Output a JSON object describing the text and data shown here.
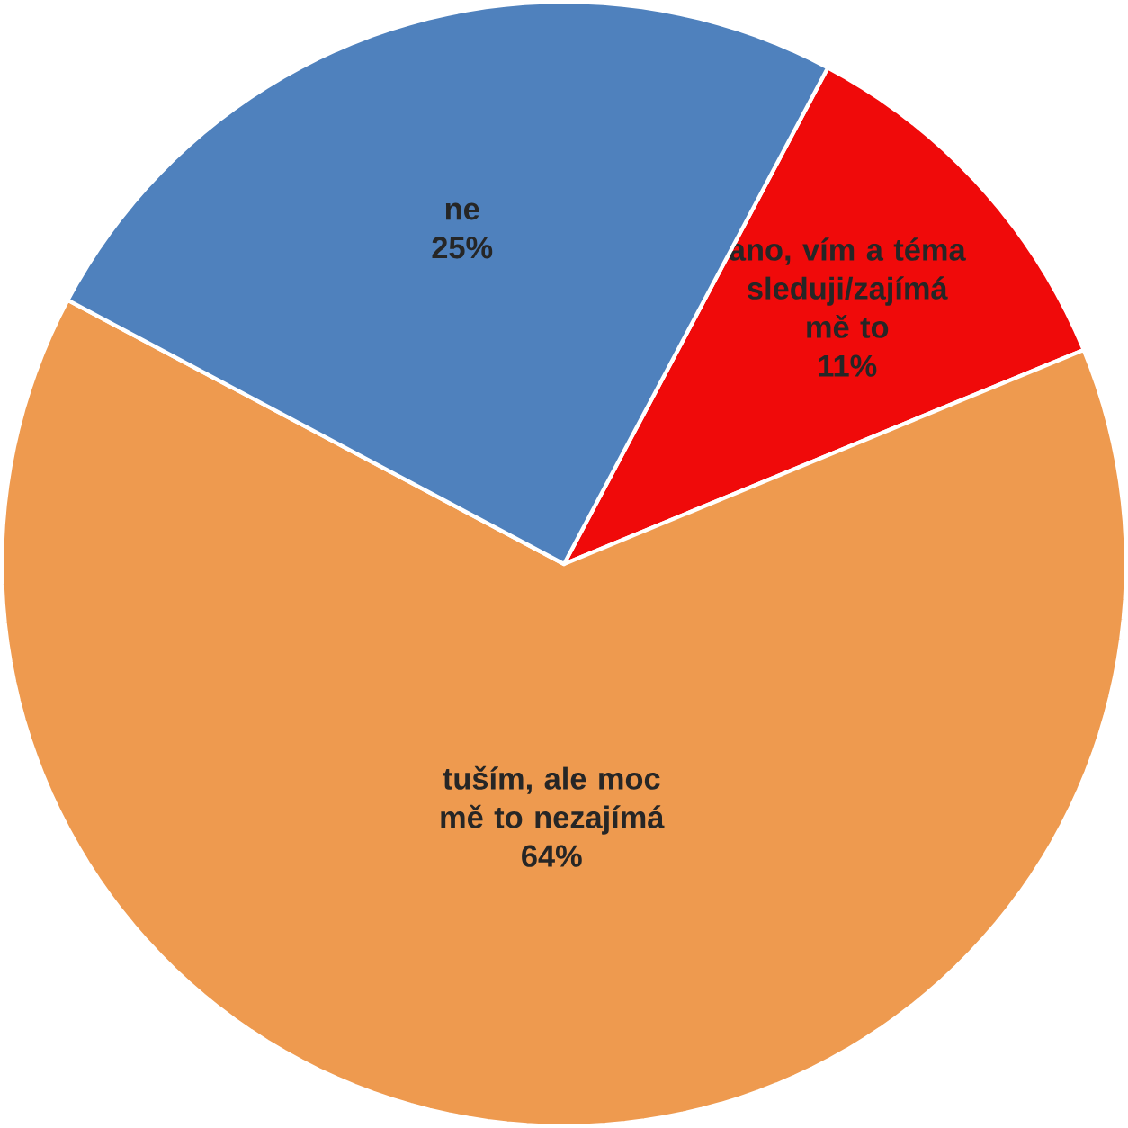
{
  "chart_data": {
    "type": "pie",
    "categories": [
      "ano, vím a téma sleduji/zajímá mě to",
      "tuším, ale moc mě to nezajímá",
      "ne"
    ],
    "values": [
      11,
      64,
      25
    ],
    "value_labels": [
      "11%",
      "64%",
      "25%"
    ],
    "colors": [
      "#f00a0a",
      "#ee9a4f",
      "#4f81bd"
    ]
  }
}
